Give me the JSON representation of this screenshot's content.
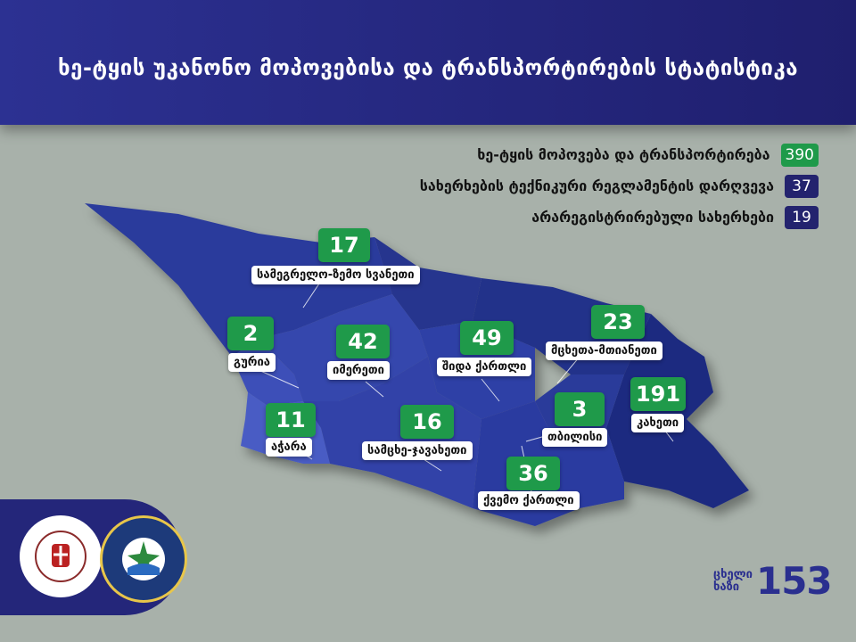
{
  "header": {
    "title": "ხე-ტყის უკანონო მოპოვებისა და ტრანსპორტირების სტატისტიკა"
  },
  "legend": [
    {
      "label": "ხე-ტყის მოპოვება და ტრანსპორტირება",
      "value": "390",
      "color": "#1f9a4a"
    },
    {
      "label": "სახერხების ტექნიკური რეგლამენტის დარღვევა",
      "value": "37",
      "color": "#23236e"
    },
    {
      "label": "არარეგისტრირებული სახერხები",
      "value": "19",
      "color": "#23236e"
    }
  ],
  "regions": [
    {
      "name": "სამეგრელო-ზემო სვანეთი",
      "value": "17"
    },
    {
      "name": "გურია",
      "value": "2"
    },
    {
      "name": "იმერეთი",
      "value": "42"
    },
    {
      "name": "შიდა ქართლი",
      "value": "49"
    },
    {
      "name": "მცხეთა-მთიანეთი",
      "value": "23"
    },
    {
      "name": "კახეთი",
      "value": "191"
    },
    {
      "name": "აჭარა",
      "value": "11"
    },
    {
      "name": "სამცხე-ჯავახეთი",
      "value": "16"
    },
    {
      "name": "თბილისი",
      "value": "3"
    },
    {
      "name": "ქვემო ქართლი",
      "value": "36"
    }
  ],
  "hotline": {
    "label_line1": "ცხელი",
    "label_line2": "ხაზი",
    "number": "153"
  },
  "colors": {
    "header": "#2c3192",
    "badge": "#1f9a4a",
    "background": "#a8b1aa"
  }
}
